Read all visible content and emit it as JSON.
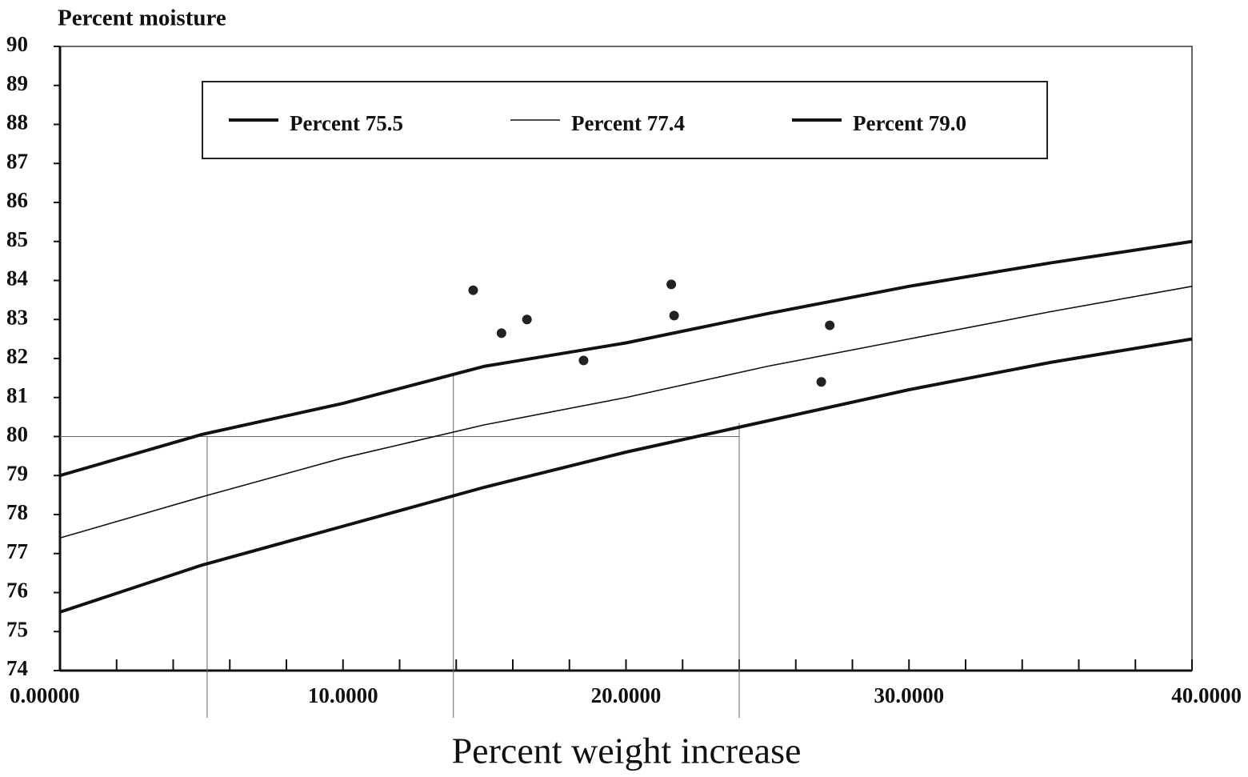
{
  "chart_data": {
    "type": "line",
    "y_axis_title": "Percent moisture",
    "x_axis_title": "Percent weight increase",
    "x": [
      0,
      5,
      10,
      15,
      20,
      25,
      30,
      35,
      40
    ],
    "series": [
      {
        "name": "Percent 75.5",
        "color": "#111111",
        "line_width": 4,
        "values": [
          75.5,
          76.7,
          77.7,
          78.7,
          79.6,
          80.4,
          81.2,
          81.9,
          82.5
        ]
      },
      {
        "name": "Percent 77.4",
        "color": "#111111",
        "line_width": 1.6,
        "values": [
          77.4,
          78.45,
          79.45,
          80.3,
          81.0,
          81.8,
          82.5,
          83.2,
          83.85
        ]
      },
      {
        "name": "Percent 79.0",
        "color": "#111111",
        "line_width": 4,
        "values": [
          79.0,
          80.05,
          80.85,
          81.8,
          82.4,
          83.15,
          83.85,
          84.45,
          85.0
        ]
      }
    ],
    "points": {
      "x": [
        14.6,
        15.6,
        16.5,
        18.5,
        21.6,
        21.7,
        26.9,
        27.2
      ],
      "y": [
        83.75,
        82.65,
        83.0,
        81.95,
        83.9,
        83.1,
        81.4,
        82.85
      ],
      "color": "#222222"
    },
    "guides": {
      "horizontal": {
        "y": 80.0,
        "x_end": 24.0
      },
      "vertical": [
        {
          "x": 5.2,
          "y": 80.0
        },
        {
          "x": 13.9,
          "y": 81.6
        },
        {
          "x": 24.0,
          "y": 80.35
        }
      ]
    },
    "xlim": [
      0,
      40
    ],
    "ylim": [
      74,
      90
    ],
    "xticks": [
      {
        "value": 0,
        "label": "0.00000"
      },
      {
        "value": 10,
        "label": "10.0000"
      },
      {
        "value": 20,
        "label": "20.0000"
      },
      {
        "value": 30,
        "label": "30.0000"
      },
      {
        "value": 40,
        "label": "40.0000"
      }
    ],
    "xminor_ticks": [
      2,
      4,
      6,
      8,
      12,
      14,
      16,
      18,
      22,
      24,
      26,
      28,
      32,
      34,
      36,
      38
    ],
    "yticks": [
      74,
      75,
      76,
      77,
      78,
      79,
      80,
      81,
      82,
      83,
      84,
      85,
      86,
      87,
      88,
      89,
      90
    ],
    "legend": "top"
  }
}
